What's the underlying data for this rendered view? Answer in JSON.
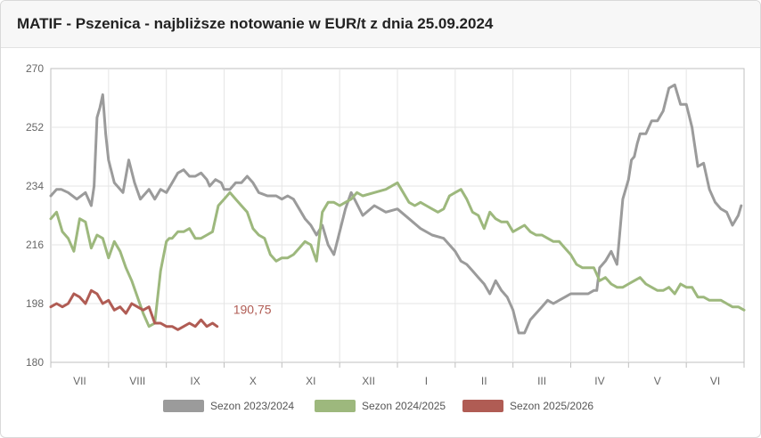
{
  "header": {
    "title": "MATIF - Pszenica - najbliższe notowanie w EUR/t z dnia 25.09.2024"
  },
  "colors": {
    "grid": "#e5e5e5",
    "axis": "#bfbfbf"
  },
  "chart_data": {
    "type": "line",
    "title": "MATIF - Pszenica - najbliższe notowanie w EUR/t z dnia 25.09.2024",
    "ylim": [
      180,
      270
    ],
    "yticks": [
      180,
      198,
      216,
      234,
      252,
      270
    ],
    "x_range": [
      0,
      12
    ],
    "categories": [
      "VII",
      "VIII",
      "IX",
      "X",
      "XI",
      "XII",
      "I",
      "II",
      "III",
      "IV",
      "V",
      "VI"
    ],
    "grid": true,
    "legend_position": "bottom",
    "last_value_label": "190,75",
    "series": [
      {
        "name": "Sezon 2023/2024",
        "color": "#9b9b9b",
        "x": [
          0.0,
          0.1,
          0.18,
          0.3,
          0.45,
          0.6,
          0.7,
          0.75,
          0.8,
          0.85,
          0.9,
          0.95,
          1.0,
          1.1,
          1.25,
          1.35,
          1.45,
          1.55,
          1.7,
          1.8,
          1.9,
          2.0,
          2.1,
          2.2,
          2.3,
          2.4,
          2.5,
          2.6,
          2.7,
          2.75,
          2.85,
          2.95,
          3.0,
          3.1,
          3.2,
          3.3,
          3.4,
          3.5,
          3.6,
          3.75,
          3.9,
          4.0,
          4.1,
          4.2,
          4.3,
          4.4,
          4.5,
          4.6,
          4.7,
          4.8,
          4.9,
          5.0,
          5.1,
          5.2,
          5.4,
          5.6,
          5.8,
          6.0,
          6.2,
          6.4,
          6.6,
          6.8,
          7.0,
          7.1,
          7.2,
          7.3,
          7.4,
          7.5,
          7.6,
          7.7,
          7.8,
          7.9,
          8.0,
          8.1,
          8.2,
          8.3,
          8.4,
          8.5,
          8.6,
          8.7,
          8.8,
          8.9,
          9.0,
          9.1,
          9.2,
          9.3,
          9.4,
          9.45,
          9.5,
          9.6,
          9.7,
          9.75,
          9.8,
          9.9,
          10.0,
          10.05,
          10.1,
          10.15,
          10.2,
          10.3,
          10.4,
          10.5,
          10.6,
          10.7,
          10.8,
          10.9,
          11.0,
          11.1,
          11.2,
          11.3,
          11.4,
          11.5,
          11.6,
          11.7,
          11.8,
          11.9,
          11.95
        ],
        "values": [
          231,
          233,
          233,
          232,
          230,
          232,
          228,
          234,
          255,
          258,
          262,
          250,
          242,
          235,
          232,
          242,
          235,
          230,
          233,
          230,
          233,
          232,
          235,
          238,
          239,
          237,
          237,
          238,
          236,
          234,
          236,
          235,
          233,
          233,
          235,
          235,
          237,
          235,
          232,
          231,
          231,
          230,
          231,
          230,
          227,
          224,
          222,
          219,
          222,
          216,
          213,
          220,
          227,
          232,
          225,
          228,
          226,
          227,
          224,
          221,
          219,
          218,
          214,
          211,
          210,
          208,
          206,
          204,
          201,
          205,
          202,
          200,
          196,
          189,
          189,
          193,
          195,
          197,
          199,
          198,
          199,
          200,
          201,
          201,
          201,
          201,
          202,
          202,
          209,
          211,
          214,
          212,
          210,
          230,
          236,
          242,
          243,
          247,
          250,
          250,
          254,
          254,
          257,
          264,
          265,
          259,
          259,
          252,
          240,
          241,
          233,
          229,
          227,
          226,
          222,
          225,
          228
        ]
      },
      {
        "name": "Sezon 2024/2025",
        "color": "#9db87d",
        "x": [
          0.0,
          0.1,
          0.2,
          0.3,
          0.4,
          0.5,
          0.6,
          0.7,
          0.8,
          0.9,
          1.0,
          1.1,
          1.2,
          1.3,
          1.4,
          1.5,
          1.6,
          1.7,
          1.8,
          1.9,
          2.0,
          2.05,
          2.1,
          2.2,
          2.3,
          2.4,
          2.5,
          2.6,
          2.7,
          2.8,
          2.9,
          3.0,
          3.1,
          3.2,
          3.3,
          3.4,
          3.5,
          3.6,
          3.7,
          3.8,
          3.9,
          4.0,
          4.1,
          4.2,
          4.3,
          4.4,
          4.5,
          4.6,
          4.7,
          4.8,
          4.9,
          5.0,
          5.1,
          5.2,
          5.3,
          5.4,
          5.6,
          5.8,
          6.0,
          6.1,
          6.2,
          6.3,
          6.4,
          6.5,
          6.6,
          6.7,
          6.8,
          6.9,
          7.0,
          7.1,
          7.2,
          7.3,
          7.4,
          7.5,
          7.6,
          7.7,
          7.8,
          7.9,
          8.0,
          8.1,
          8.2,
          8.3,
          8.4,
          8.5,
          8.6,
          8.7,
          8.8,
          8.9,
          9.0,
          9.1,
          9.2,
          9.3,
          9.4,
          9.5,
          9.6,
          9.7,
          9.8,
          9.9,
          10.0,
          10.1,
          10.2,
          10.3,
          10.4,
          10.5,
          10.6,
          10.7,
          10.8,
          10.9,
          11.0,
          11.1,
          11.2,
          11.3,
          11.4,
          11.5,
          11.6,
          11.7,
          11.8,
          11.9,
          12.0
        ],
        "values": [
          224,
          226,
          220,
          218,
          214,
          224,
          223,
          215,
          219,
          218,
          212,
          217,
          214,
          209,
          205,
          200,
          195,
          191,
          192,
          208,
          217,
          218,
          218,
          220,
          220,
          221,
          218,
          218,
          219,
          220,
          228,
          230,
          232,
          230,
          228,
          226,
          221,
          219,
          218,
          213,
          211,
          212,
          212,
          213,
          215,
          217,
          216,
          211,
          226,
          229,
          229,
          228,
          229,
          230,
          232,
          231,
          232,
          233,
          235,
          232,
          229,
          228,
          229,
          228,
          227,
          226,
          227,
          231,
          232,
          233,
          230,
          226,
          225,
          221,
          226,
          224,
          223,
          223,
          220,
          221,
          222,
          220,
          219,
          219,
          218,
          217,
          217,
          215,
          213,
          210,
          209,
          209,
          209,
          205,
          206,
          204,
          203,
          203,
          204,
          205,
          206,
          204,
          203,
          202,
          202,
          203,
          201,
          204,
          203,
          203,
          200,
          200,
          199,
          199,
          199,
          198,
          197,
          197,
          196
        ]
      },
      {
        "name": "Sezon 2025/2026",
        "color": "#b05c54",
        "x": [
          0.0,
          0.1,
          0.2,
          0.3,
          0.4,
          0.5,
          0.6,
          0.7,
          0.8,
          0.9,
          1.0,
          1.1,
          1.2,
          1.3,
          1.4,
          1.5,
          1.6,
          1.7,
          1.8,
          1.9,
          2.0,
          2.1,
          2.2,
          2.3,
          2.4,
          2.5,
          2.6,
          2.7,
          2.8,
          2.88
        ],
        "values": [
          197,
          198,
          197,
          198,
          201,
          200,
          198,
          202,
          201,
          198,
          199,
          196,
          197,
          195,
          198,
          197,
          196,
          197,
          192,
          192,
          191,
          191,
          190,
          191,
          192,
          191,
          193,
          191,
          192,
          191
        ]
      }
    ]
  }
}
